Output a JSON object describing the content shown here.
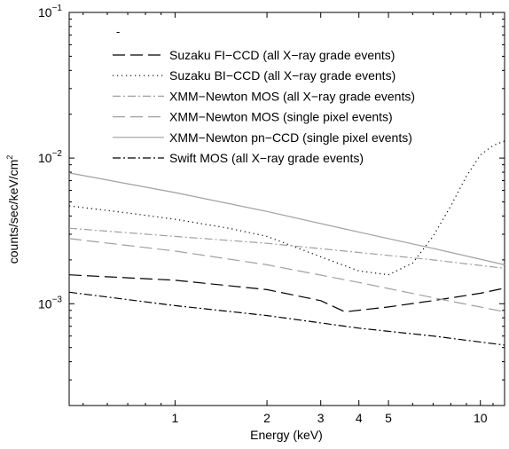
{
  "chart_data": {
    "type": "line",
    "xlabel": "Energy (keV)",
    "ylabel_main": "counts/sec/keV/cm",
    "ylabel_sup": "2",
    "xscale": "log",
    "yscale": "log",
    "xlim": [
      0.45,
      12
    ],
    "ylim": [
      0.0002,
      0.1
    ],
    "grid": false,
    "legend_position": "top-center",
    "x_ticks": [
      {
        "value": 1,
        "label": "1"
      },
      {
        "value": 2,
        "label": "2"
      },
      {
        "value": 3,
        "label": "3"
      },
      {
        "value": 4,
        "label": "4"
      },
      {
        "value": 5,
        "label": "5"
      },
      {
        "value": 10,
        "label": "10"
      }
    ],
    "y_ticks": [
      {
        "value": 0.001,
        "base": "10",
        "exp": "−3"
      },
      {
        "value": 0.01,
        "base": "10",
        "exp": "−2"
      },
      {
        "value": 0.1,
        "base": "10",
        "exp": "−1"
      }
    ],
    "series": [
      {
        "name": "Suzaku FI−CCD (all X−ray grade events)",
        "color": "#000000",
        "dash": "14,6",
        "x": [
          0.45,
          1,
          2,
          3,
          3.6,
          5,
          7,
          10,
          12
        ],
        "y": [
          0.00158,
          0.00145,
          0.00125,
          0.00105,
          0.00088,
          0.00095,
          0.00105,
          0.00118,
          0.00128
        ]
      },
      {
        "name": "Suzaku BI−CCD (all X−ray grade events)",
        "color": "#000000",
        "dash": "1.2,3.8",
        "x": [
          0.45,
          0.7,
          1,
          1.5,
          2,
          3,
          4,
          5,
          6,
          7,
          8,
          9,
          10,
          11,
          12
        ],
        "y": [
          0.0047,
          0.0042,
          0.0038,
          0.0033,
          0.0029,
          0.0021,
          0.00168,
          0.00158,
          0.0019,
          0.0029,
          0.0047,
          0.0075,
          0.0105,
          0.0122,
          0.0131
        ]
      },
      {
        "name": "XMM−Newton MOS (all X−ray grade events)",
        "color": "#a0a0a0",
        "dash": "9,3,2,3",
        "x": [
          0.45,
          1,
          2,
          4,
          7,
          12
        ],
        "y": [
          0.0033,
          0.0029,
          0.0026,
          0.00225,
          0.002,
          0.00175
        ]
      },
      {
        "name": "XMM−Newton MOS (single pixel events)",
        "color": "#a0a0a0",
        "dash": "14,6",
        "x": [
          0.45,
          1,
          2,
          4,
          7,
          12
        ],
        "y": [
          0.0028,
          0.0023,
          0.00185,
          0.0014,
          0.0011,
          0.00088
        ]
      },
      {
        "name": "XMM−Newton pn−CCD (single pixel events)",
        "color": "#a0a0a0",
        "dash": "",
        "x": [
          0.45,
          1,
          2,
          4,
          7,
          12
        ],
        "y": [
          0.0079,
          0.0058,
          0.0043,
          0.0031,
          0.0024,
          0.00185
        ]
      },
      {
        "name": "Swift MOS (all X−ray grade events)",
        "color": "#000000",
        "dash": "9,3,2,3",
        "x": [
          0.45,
          1,
          2,
          4,
          7,
          12
        ],
        "y": [
          0.0012,
          0.00097,
          0.00083,
          0.00068,
          0.0006,
          0.00052
        ]
      }
    ],
    "legend_extra_mark": "-"
  }
}
